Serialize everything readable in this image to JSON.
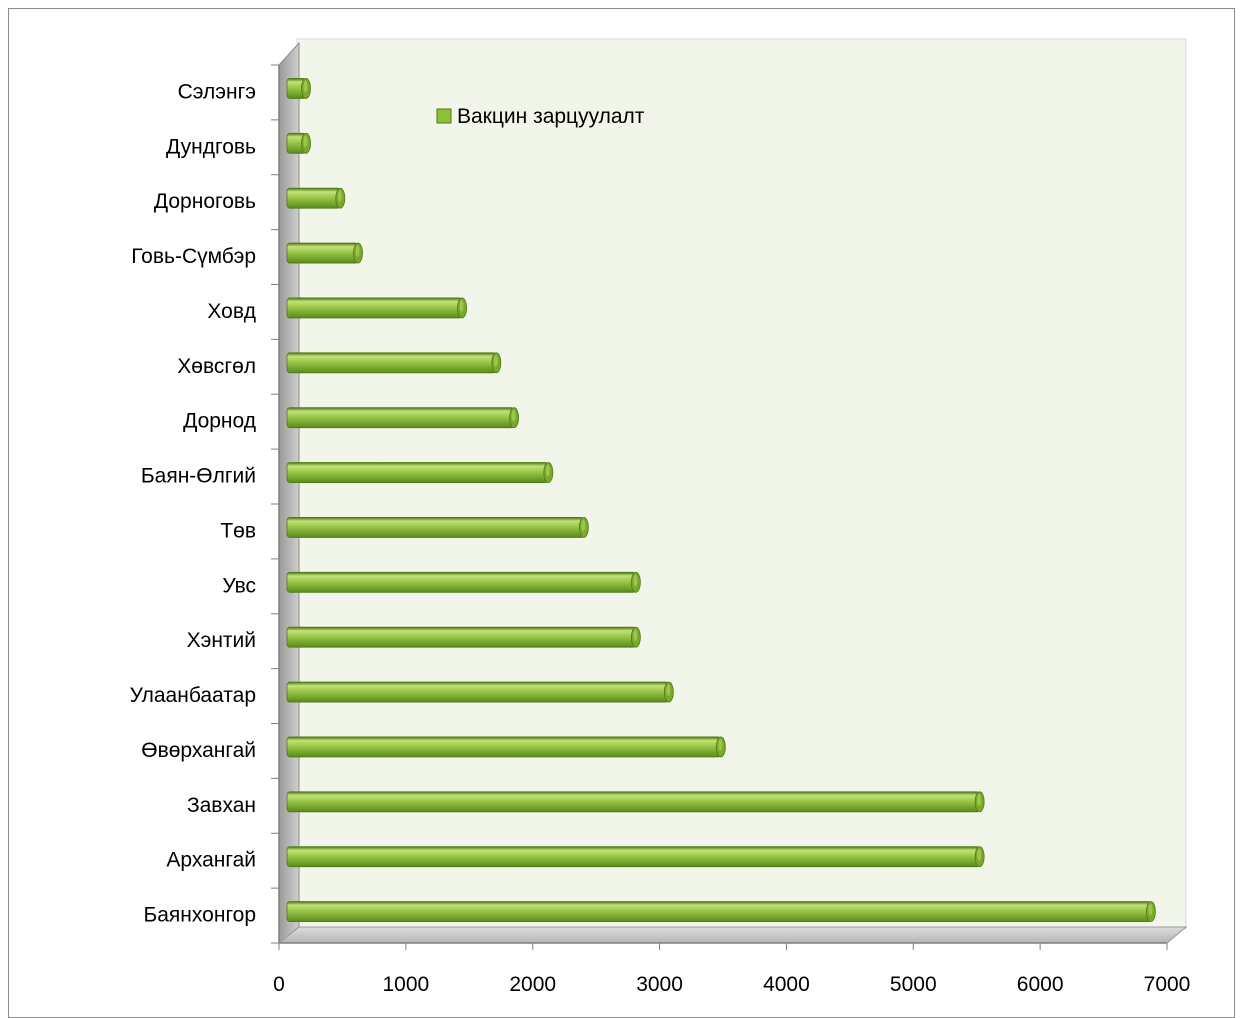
{
  "chart_data": {
    "type": "bar",
    "orientation": "horizontal",
    "title": "",
    "xlabel": "",
    "ylabel": "",
    "categories": [
      "Сэлэнгэ",
      "Дундговь",
      "Дорноговь",
      "Говь-Сүмбэр",
      "Ховд",
      "Хөвсгөл",
      "Дорнод",
      "Баян-Өлгий",
      "Төв",
      "Увс",
      "Хэнтий",
      "Улаанбаатар",
      "Өвөрхангай",
      "Завхан",
      "Архангай",
      "Баянхонгор"
    ],
    "series": [
      {
        "name": "Вакцин зарцуулалт",
        "values": [
          150,
          150,
          420,
          560,
          1380,
          1650,
          1790,
          2060,
          2340,
          2750,
          2750,
          3010,
          3420,
          5460,
          5460,
          6810
        ]
      }
    ],
    "xlim": [
      0,
      7000
    ],
    "x_ticks": [
      "0",
      "1000",
      "2000",
      "3000",
      "4000",
      "5000",
      "6000",
      "7000"
    ],
    "grid": false,
    "legend": "top-left",
    "colors": {
      "bar": "#8dbf3a",
      "bar_dark": "#5f8a1c",
      "bar_light": "#c8e57f",
      "plot_background": "#f1f5ea",
      "floor": "#c8c8c8"
    }
  }
}
